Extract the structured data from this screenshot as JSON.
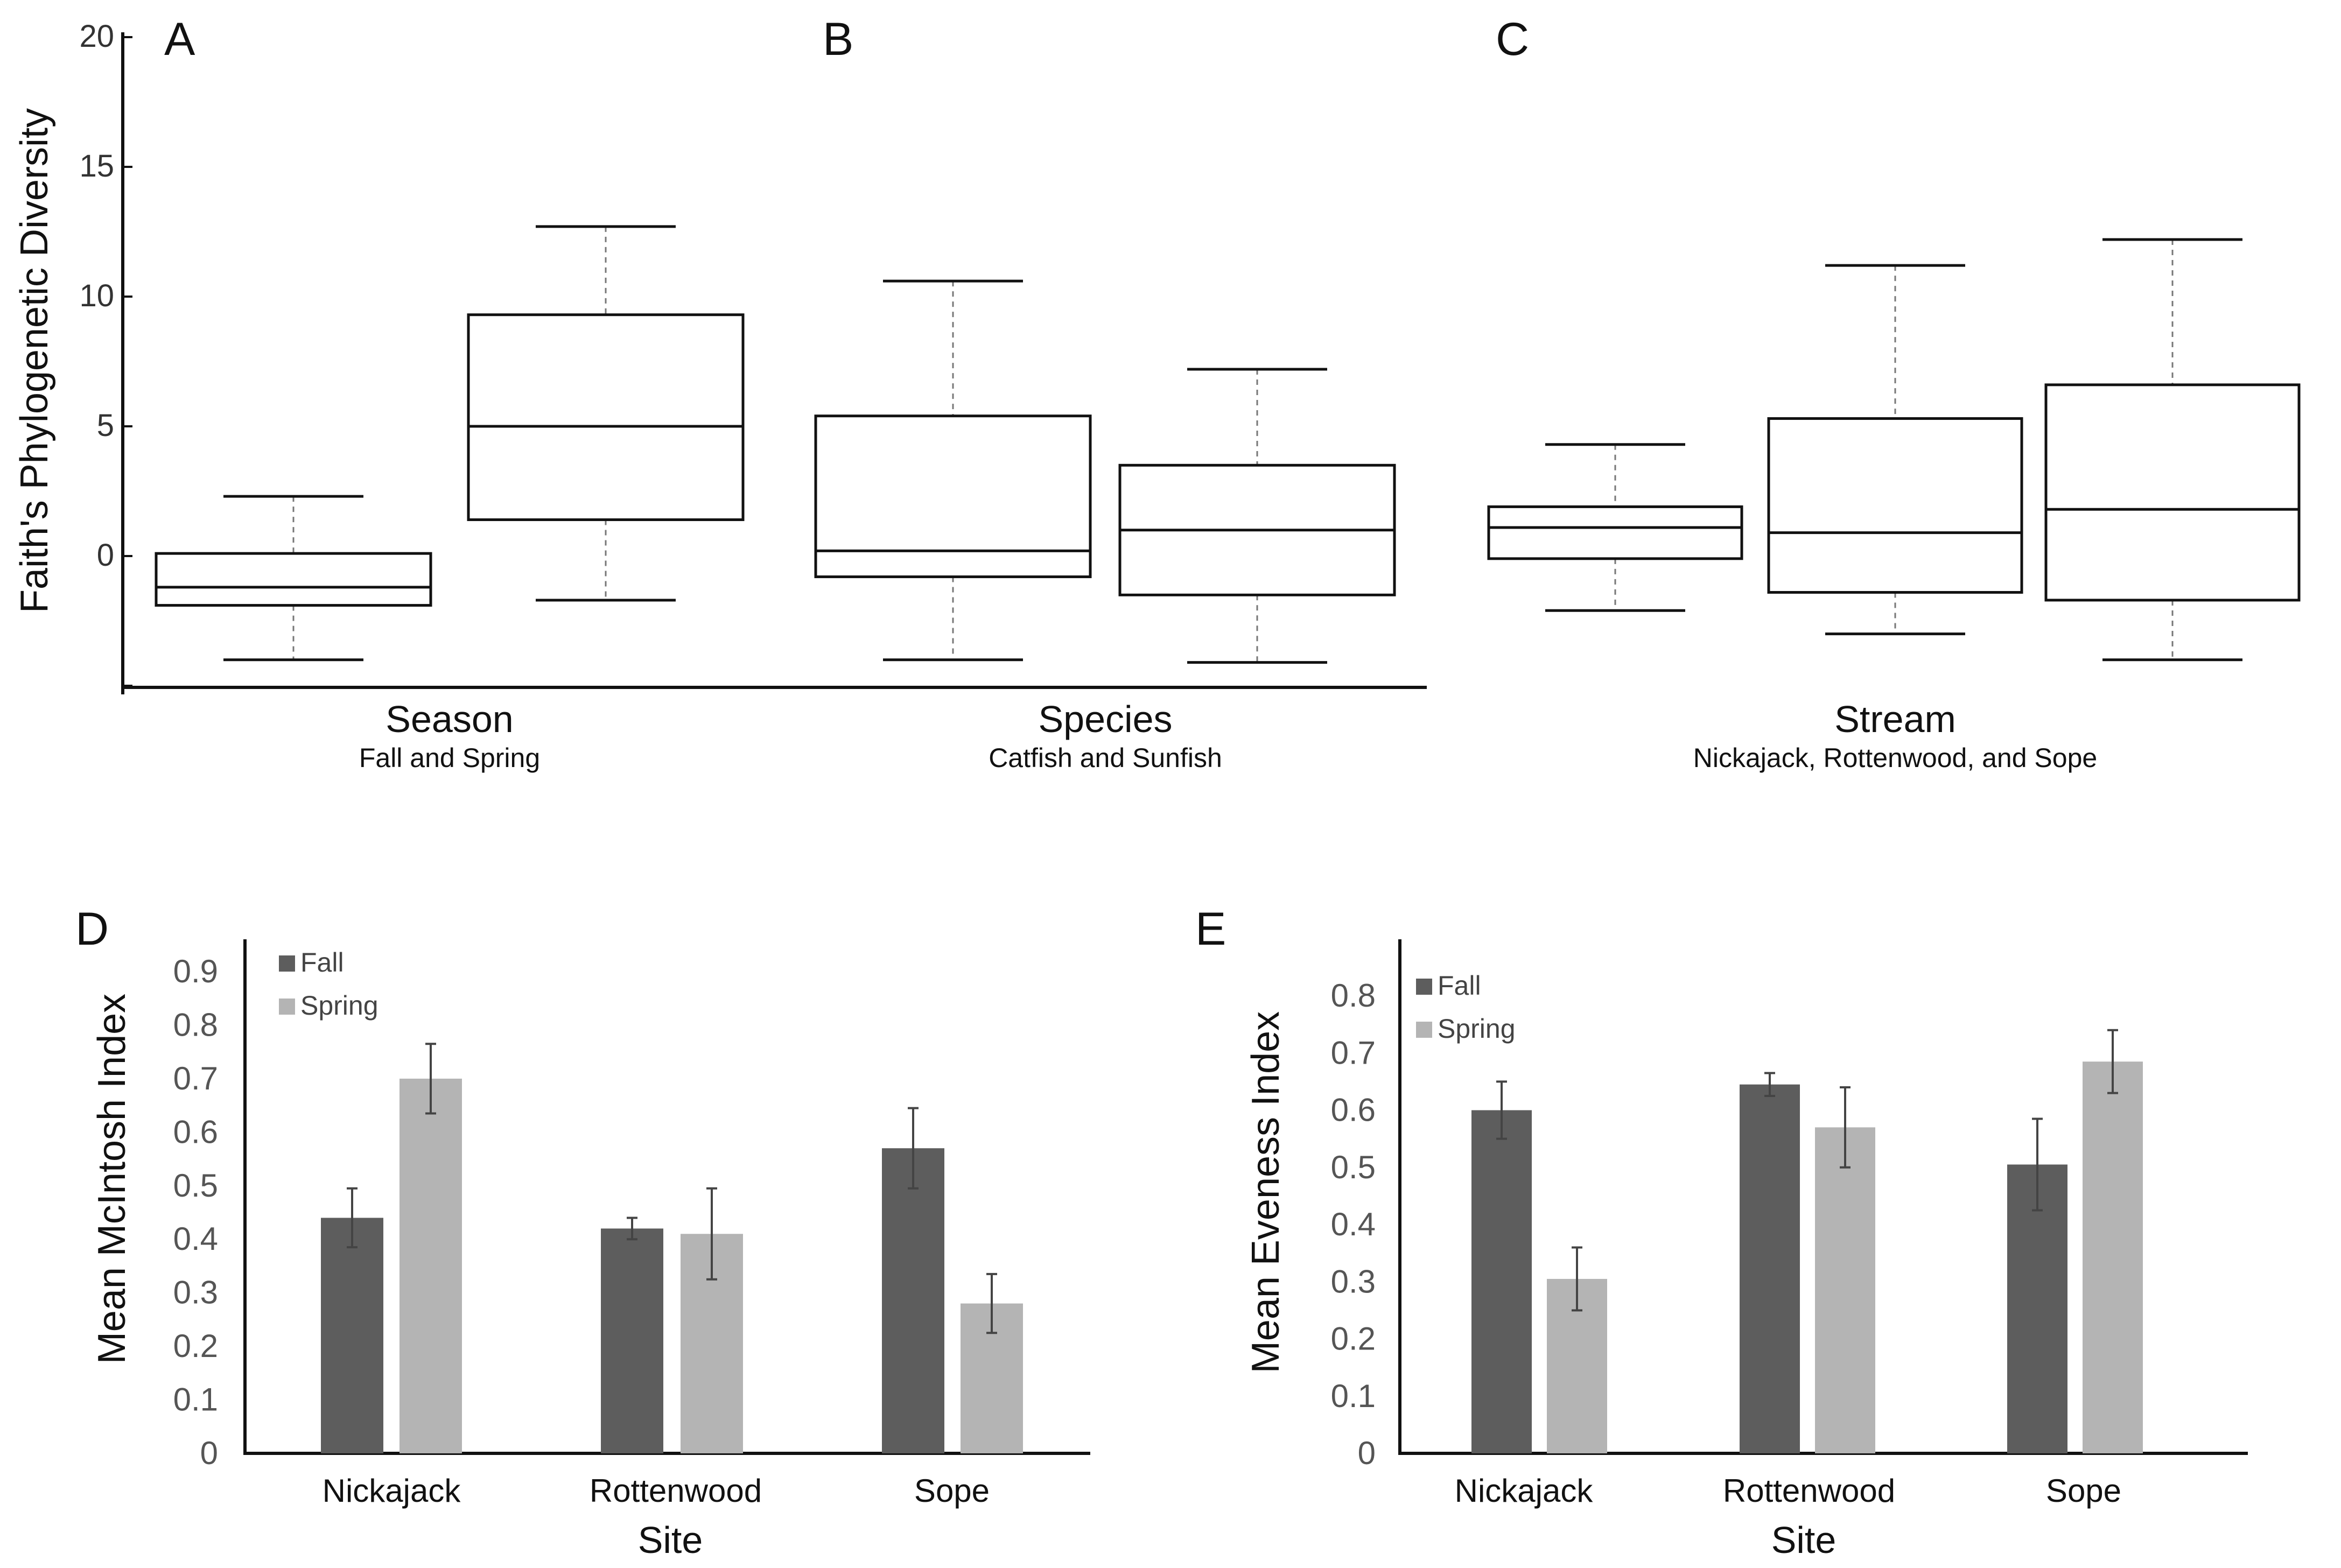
{
  "colors": {
    "fall": "#5d5d5d",
    "spring": "#b4b4b4",
    "ink": "#111111"
  },
  "panels": {
    "A": "A",
    "B": "B",
    "C": "C",
    "D": "D",
    "E": "E"
  },
  "chart_data": [
    {
      "type": "box",
      "panels": [
        "A",
        "B",
        "C"
      ],
      "ylabel": "Faith's Phylogenetic Diversity",
      "ylim": [
        -5,
        20
      ],
      "yticks": [
        "20",
        "15",
        "10",
        "5",
        "0"
      ],
      "groups": [
        {
          "panel": "A",
          "title": "Season",
          "subtitle": "Fall and Spring",
          "boxes": [
            {
              "min": -4,
              "q1": -1.9,
              "median": -1.2,
              "q3": 0.1,
              "max": 2.3
            },
            {
              "min": -1.7,
              "q1": 1.4,
              "median": 5.0,
              "q3": 9.3,
              "max": 12.7
            }
          ]
        },
        {
          "panel": "B",
          "title": "Species",
          "subtitle": "Catfish and Sunfish",
          "boxes": [
            {
              "min": -4,
              "q1": -0.8,
              "median": 0.2,
              "q3": 5.4,
              "max": 10.6
            },
            {
              "min": -4.1,
              "q1": -1.5,
              "median": 1.0,
              "q3": 3.5,
              "max": 7.2
            }
          ]
        },
        {
          "panel": "C",
          "title": "Stream",
          "subtitle": "Nickajack, Rottenwood, and Sope",
          "boxes": [
            {
              "min": -2.1,
              "q1": -0.1,
              "median": 1.1,
              "q3": 1.9,
              "max": 4.3
            },
            {
              "min": -3,
              "q1": -1.4,
              "median": 0.9,
              "q3": 5.3,
              "max": 11.2
            },
            {
              "min": -4,
              "q1": -1.7,
              "median": 1.8,
              "q3": 6.6,
              "max": 12.2
            }
          ]
        }
      ]
    },
    {
      "type": "bar",
      "panel": "D",
      "ylabel": "Mean McIntosh Index",
      "xlabel": "Site",
      "ylim": [
        0,
        0.9
      ],
      "yticks": [
        "0.9",
        "0.8",
        "0.7",
        "0.6",
        "0.5",
        "0.4",
        "0.3",
        "0.2",
        "0.1",
        "0"
      ],
      "categories": [
        "Nickajack",
        "Rottenwood",
        "Sope"
      ],
      "series": [
        {
          "name": "Fall",
          "values": [
            0.44,
            0.42,
            0.57
          ],
          "errors": [
            0.055,
            0.02,
            0.075
          ]
        },
        {
          "name": "Spring",
          "values": [
            0.7,
            0.41,
            0.28
          ],
          "errors": [
            0.065,
            0.085,
            0.055
          ]
        }
      ]
    },
    {
      "type": "bar",
      "panel": "E",
      "ylabel": "Mean Eveness Index",
      "xlabel": "Site",
      "ylim": [
        0,
        0.8
      ],
      "yticks": [
        "0.8",
        "0.7",
        "0.6",
        "0.5",
        "0.4",
        "0.3",
        "0.2",
        "0.1",
        "0"
      ],
      "categories": [
        "Nickajack",
        "Rottenwood",
        "Sope"
      ],
      "series": [
        {
          "name": "Fall",
          "values": [
            0.6,
            0.645,
            0.505
          ],
          "errors": [
            0.05,
            0.02,
            0.08
          ]
        },
        {
          "name": "Spring",
          "values": [
            0.305,
            0.57,
            0.685
          ],
          "errors": [
            0.055,
            0.07,
            0.055
          ]
        }
      ]
    }
  ]
}
